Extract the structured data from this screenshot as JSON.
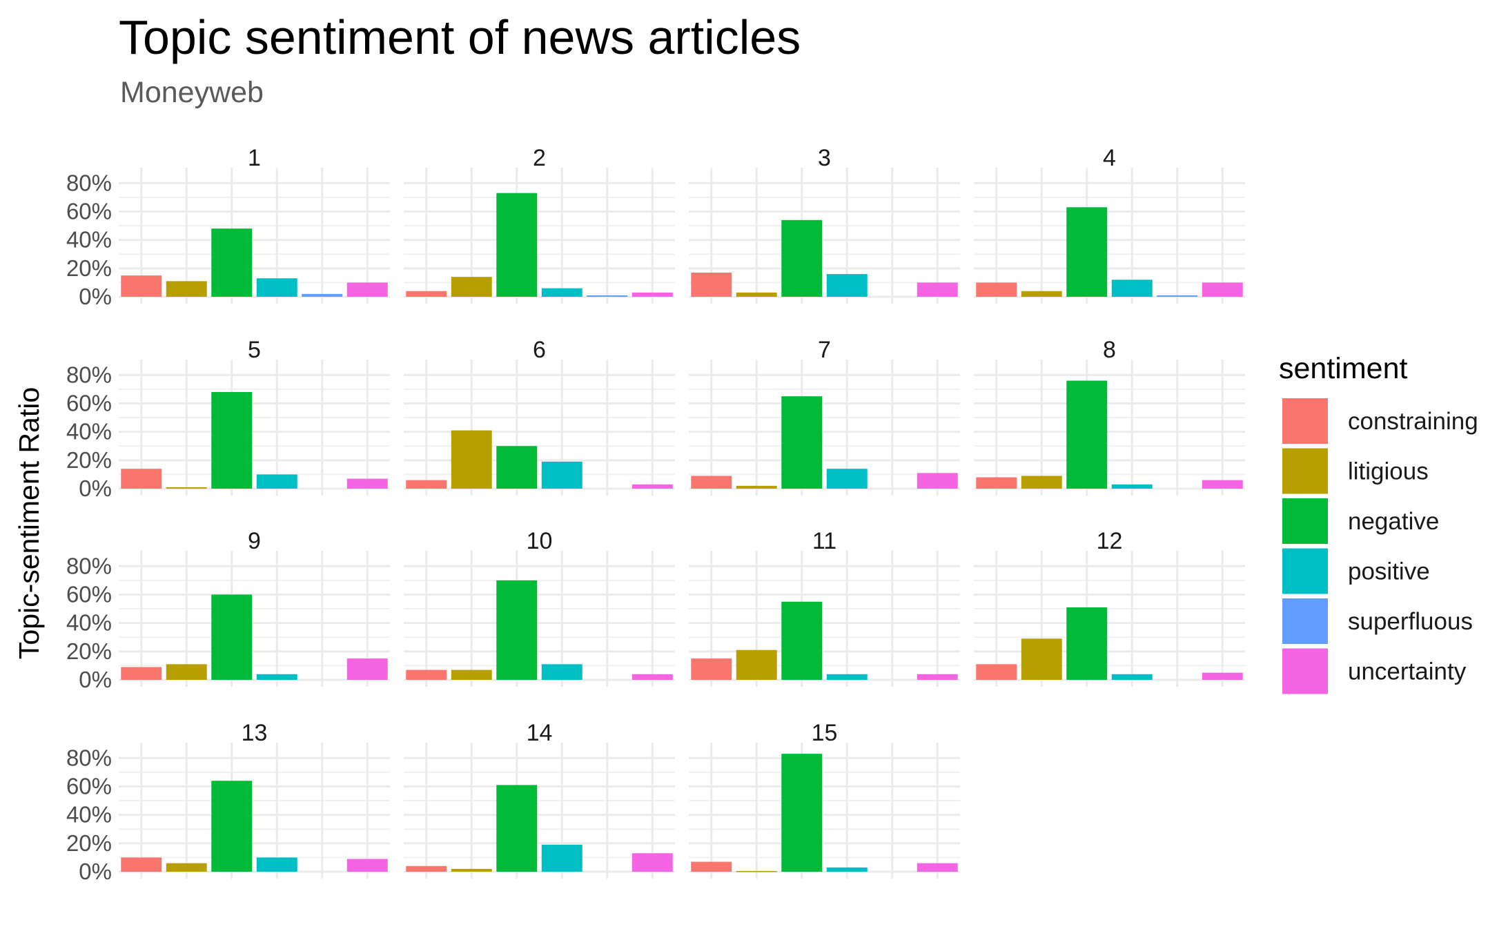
{
  "chart_data": {
    "type": "bar",
    "title": "Topic sentiment of news articles",
    "subtitle": "Moneyweb",
    "xlabel": "",
    "ylabel": "Topic-sentiment Ratio",
    "ylim": [
      0,
      0.85
    ],
    "y_ticks": [
      {
        "value": 0,
        "label": "0%"
      },
      {
        "value": 0.2,
        "label": "20%"
      },
      {
        "value": 0.4,
        "label": "40%"
      },
      {
        "value": 0.6,
        "label": "60%"
      },
      {
        "value": 0.8,
        "label": "80%"
      }
    ],
    "grid": true,
    "facet_ncol": 4,
    "legend": {
      "title": "sentiment",
      "position": "right",
      "entries": [
        {
          "name": "constraining",
          "color": "#F8766D"
        },
        {
          "name": "litigious",
          "color": "#B79F00"
        },
        {
          "name": "negative",
          "color": "#00BA38"
        },
        {
          "name": "positive",
          "color": "#00BFC4"
        },
        {
          "name": "superfluous",
          "color": "#619CFF"
        },
        {
          "name": "uncertainty",
          "color": "#F564E3"
        }
      ]
    },
    "categories": [
      "constraining",
      "litigious",
      "negative",
      "positive",
      "superfluous",
      "uncertainty"
    ],
    "panels": [
      {
        "label": "1",
        "values": [
          0.15,
          0.11,
          0.48,
          0.13,
          0.02,
          0.1
        ]
      },
      {
        "label": "2",
        "values": [
          0.04,
          0.14,
          0.73,
          0.06,
          0.01,
          0.03
        ]
      },
      {
        "label": "3",
        "values": [
          0.17,
          0.03,
          0.54,
          0.16,
          0,
          0.1
        ]
      },
      {
        "label": "4",
        "values": [
          0.1,
          0.04,
          0.63,
          0.12,
          0.01,
          0.1
        ]
      },
      {
        "label": "5",
        "values": [
          0.14,
          0.01,
          0.68,
          0.1,
          0,
          0.07
        ]
      },
      {
        "label": "6",
        "values": [
          0.06,
          0.41,
          0.3,
          0.19,
          0,
          0.03
        ]
      },
      {
        "label": "7",
        "values": [
          0.09,
          0.02,
          0.65,
          0.14,
          0,
          0.11
        ]
      },
      {
        "label": "8",
        "values": [
          0.08,
          0.09,
          0.76,
          0.03,
          0,
          0.06
        ]
      },
      {
        "label": "9",
        "values": [
          0.09,
          0.11,
          0.6,
          0.04,
          0,
          0.15
        ]
      },
      {
        "label": "10",
        "values": [
          0.07,
          0.07,
          0.7,
          0.11,
          0,
          0.04
        ]
      },
      {
        "label": "11",
        "values": [
          0.15,
          0.21,
          0.55,
          0.04,
          0,
          0.04
        ]
      },
      {
        "label": "12",
        "values": [
          0.11,
          0.29,
          0.51,
          0.04,
          0,
          0.05
        ]
      },
      {
        "label": "13",
        "values": [
          0.1,
          0.06,
          0.64,
          0.1,
          0,
          0.09
        ]
      },
      {
        "label": "14",
        "values": [
          0.04,
          0.02,
          0.61,
          0.19,
          0,
          0.13
        ]
      },
      {
        "label": "15",
        "values": [
          0.07,
          0.005,
          0.83,
          0.03,
          0,
          0.06
        ]
      }
    ]
  }
}
